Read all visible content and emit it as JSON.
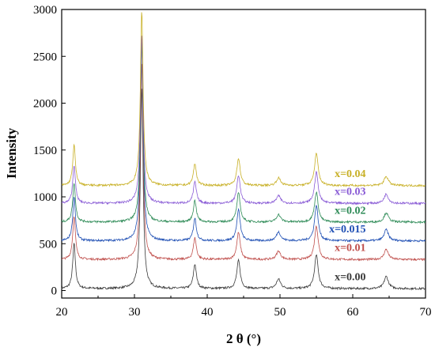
{
  "chart_data": {
    "type": "line",
    "xlabel": "2 θ (°)",
    "ylabel": "Intensity",
    "xlim": [
      20,
      70
    ],
    "ylim": [
      -80,
      3000
    ],
    "xticks": [
      20,
      30,
      40,
      50,
      60,
      70
    ],
    "yticks": [
      0,
      500,
      1000,
      1500,
      2000,
      2500,
      3000
    ],
    "grid": false,
    "legend": "inline labels at right of each trace",
    "peaks": [
      {
        "x": 21.7,
        "w": 0.22
      },
      {
        "x": 31.0,
        "w": 0.22
      },
      {
        "x": 38.3,
        "w": 0.25
      },
      {
        "x": 44.3,
        "w": 0.28
      },
      {
        "x": 49.8,
        "w": 0.35
      },
      {
        "x": 55.0,
        "w": 0.3
      },
      {
        "x": 64.6,
        "w": 0.35
      }
    ],
    "series": [
      {
        "name": "x=0.00",
        "color": "#3a3a3a",
        "baseline": 20,
        "heights": [
          480,
          2150,
          260,
          300,
          100,
          360,
          130
        ]
      },
      {
        "name": "x=0.01",
        "color": "#c0504d",
        "baseline": 330,
        "heights": [
          470,
          2100,
          230,
          290,
          90,
          360,
          110
        ]
      },
      {
        "name": "x=0.015",
        "color": "#1f4fb4",
        "baseline": 530,
        "heights": [
          470,
          2150,
          240,
          330,
          95,
          380,
          120
        ]
      },
      {
        "name": "x=0.02",
        "color": "#2e8b57",
        "baseline": 730,
        "heights": [
          420,
          1900,
          230,
          310,
          80,
          320,
          100
        ]
      },
      {
        "name": "x=0.03",
        "color": "#8a5cd6",
        "baseline": 930,
        "heights": [
          410,
          1800,
          230,
          300,
          80,
          330,
          100
        ]
      },
      {
        "name": "x=0.04",
        "color": "#c8b026",
        "baseline": 1120,
        "heights": [
          430,
          1870,
          230,
          290,
          80,
          340,
          100
        ]
      }
    ]
  }
}
